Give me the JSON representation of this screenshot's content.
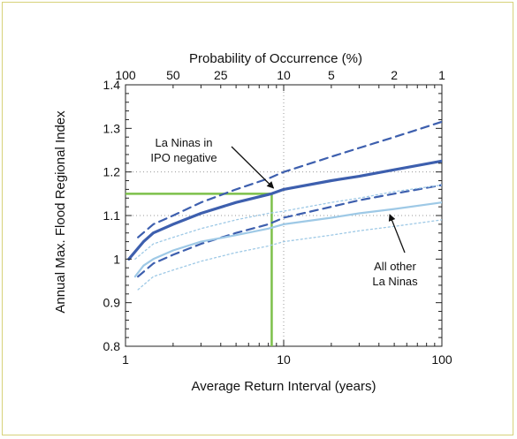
{
  "chart_data": {
    "type": "line",
    "xscale": "log",
    "xlabel": "Average Return Interval (years)",
    "ylabel": "Annual Max. Flood Regional Index",
    "top_axis_label": "Probability of Occurrence (%)",
    "xlim": [
      1,
      100
    ],
    "ylim": [
      0.8,
      1.4
    ],
    "x_ticks": [
      "1",
      "10",
      "100"
    ],
    "y_ticks": [
      "0.8",
      "0.9",
      "1",
      "1.1",
      "1.2",
      "1.3",
      "1.4"
    ],
    "top_ticks": [
      {
        "label": "100",
        "x": 1
      },
      {
        "label": "50",
        "x": 2
      },
      {
        "label": "25",
        "x": 4
      },
      {
        "label": "10",
        "x": 10
      },
      {
        "label": "5",
        "x": 20
      },
      {
        "label": "2",
        "x": 50
      },
      {
        "label": "1",
        "x": 100
      }
    ],
    "grid": "dotted lines at x = 10 and y = 1.1, 1.2",
    "series": [
      {
        "style": "solid",
        "color": "#3d5fae",
        "x": [
          1.05,
          1.3,
          1.5,
          2,
          3,
          5,
          8.4,
          10,
          20,
          30,
          50,
          100
        ],
        "y": [
          1.0,
          1.04,
          1.06,
          1.08,
          1.105,
          1.13,
          1.15,
          1.16,
          1.18,
          1.19,
          1.205,
          1.225
        ]
      },
      {
        "style": "dashed",
        "color": "#3d5fae",
        "x": [
          1.2,
          1.5,
          2,
          3,
          5,
          8,
          10,
          20,
          30,
          50,
          100
        ],
        "y": [
          1.05,
          1.08,
          1.1,
          1.13,
          1.16,
          1.185,
          1.2,
          1.235,
          1.255,
          1.28,
          1.315
        ]
      },
      {
        "style": "dashed",
        "color": "#3d5fae",
        "x": [
          1.2,
          1.5,
          2,
          3,
          5,
          8,
          10,
          20,
          30,
          50,
          100
        ],
        "y": [
          0.96,
          0.99,
          1.01,
          1.035,
          1.06,
          1.08,
          1.095,
          1.12,
          1.135,
          1.15,
          1.17
        ]
      },
      {
        "style": "solid",
        "color": "#9ec9e6",
        "x": [
          1.15,
          1.3,
          1.5,
          2,
          3,
          5,
          8,
          10,
          20,
          30,
          50,
          100
        ],
        "y": [
          0.96,
          0.985,
          1.0,
          1.02,
          1.04,
          1.055,
          1.07,
          1.08,
          1.095,
          1.105,
          1.115,
          1.13
        ]
      },
      {
        "style": "dotted",
        "color": "#9ec9e6",
        "x": [
          1.15,
          1.5,
          2,
          3,
          5,
          8,
          10,
          20,
          30,
          50,
          100
        ],
        "y": [
          1.0,
          1.035,
          1.05,
          1.07,
          1.09,
          1.105,
          1.11,
          1.13,
          1.14,
          1.155,
          1.17
        ]
      },
      {
        "style": "dotted",
        "color": "#9ec9e6",
        "x": [
          1.2,
          1.5,
          2,
          3,
          5,
          8,
          10,
          20,
          30,
          50,
          100
        ],
        "y": [
          0.93,
          0.96,
          0.975,
          0.995,
          1.015,
          1.03,
          1.04,
          1.055,
          1.065,
          1.075,
          1.09
        ]
      }
    ],
    "reference_lines": {
      "color": "#7dc04a",
      "x": 8.4,
      "y": 1.15
    },
    "annotations": [
      {
        "lines": [
          "La Ninas in",
          "IPO negative"
        ],
        "points_to": [
          8.4,
          1.155
        ]
      },
      {
        "lines": [
          "All other",
          "La Ninas"
        ],
        "points_to": [
          32,
          1.115
        ]
      }
    ]
  }
}
